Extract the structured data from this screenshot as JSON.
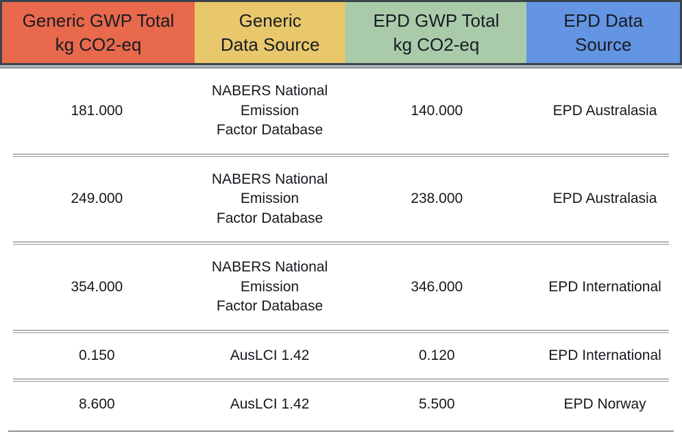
{
  "colors": {
    "generic_gwp_header_bg": "#e8694c",
    "generic_source_header_bg": "#e9c76b",
    "epd_gwp_header_bg": "#a9cba9",
    "epd_source_header_bg": "#6495e2",
    "header_border": "#3a424c",
    "text": "#14181d",
    "separator_gray": "#9aa0a4"
  },
  "table": {
    "columns": [
      {
        "id": "generic_gwp",
        "label": "Generic GWP Total\nkg CO2-eq",
        "bg": "#e8694c"
      },
      {
        "id": "generic_source",
        "label": "Generic\nData Source",
        "bg": "#e9c76b"
      },
      {
        "id": "epd_gwp",
        "label": "EPD GWP Total\nkg CO2-eq",
        "bg": "#a9cba9"
      },
      {
        "id": "epd_source",
        "label": "EPD Data\nSource",
        "bg": "#6495e2"
      }
    ],
    "rows": [
      {
        "generic_gwp": "181.000",
        "generic_source": "NABERS National\nEmission\nFactor Database",
        "epd_gwp": "140.000",
        "epd_source": "EPD Australasia"
      },
      {
        "generic_gwp": "249.000",
        "generic_source": "NABERS National\nEmission\nFactor Database",
        "epd_gwp": "238.000",
        "epd_source": "EPD Australasia"
      },
      {
        "generic_gwp": "354.000",
        "generic_source": "NABERS National\nEmission\nFactor Database",
        "epd_gwp": "346.000",
        "epd_source": "EPD International"
      },
      {
        "generic_gwp": "0.150",
        "generic_source": "AusLCI 1.42",
        "epd_gwp": "0.120",
        "epd_source": "EPD International"
      },
      {
        "generic_gwp": "8.600",
        "generic_source": "AusLCI 1.42",
        "epd_gwp": "5.500",
        "epd_source": "EPD Norway"
      }
    ]
  }
}
